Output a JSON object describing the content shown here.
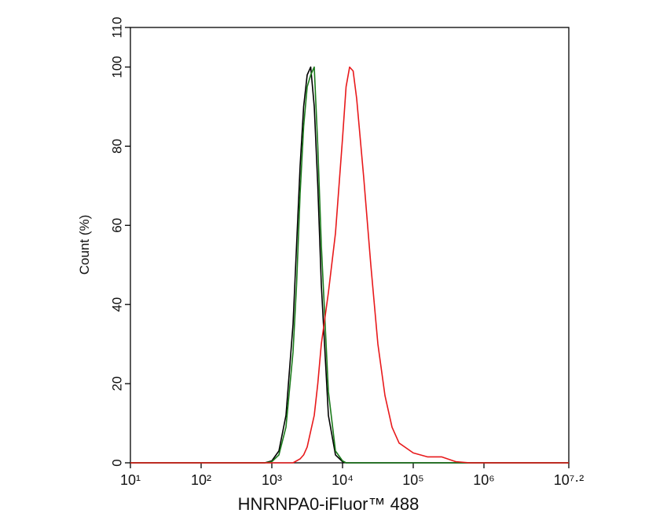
{
  "chart_data": {
    "type": "line",
    "x_label": "HNRNPA0-iFluor™ 488",
    "y_label": "Count  (%)",
    "x": [
      10,
      794,
      1000,
      1259,
      1585,
      1995,
      2239,
      2512,
      2818,
      3162,
      3548,
      3981,
      4467,
      5012,
      6310,
      7943,
      10000,
      11220,
      12589,
      14125,
      15849,
      19953,
      25119,
      31623,
      39811,
      50119,
      63096,
      100000,
      158489,
      251189,
      398107,
      630957,
      15848932
    ],
    "series": [
      {
        "color": "#000000",
        "values": [
          0,
          0,
          0.5,
          3,
          12,
          35,
          55,
          75,
          90,
          98,
          100,
          90,
          70,
          45,
          12,
          2,
          0.3,
          0,
          0,
          0,
          0,
          0,
          0,
          0,
          0,
          0,
          0,
          0,
          0,
          0,
          0,
          0,
          0
        ]
      },
      {
        "color": "#1a7a1a",
        "values": [
          0,
          0,
          0.3,
          2,
          9,
          28,
          45,
          68,
          85,
          95,
          98,
          100,
          80,
          55,
          18,
          3,
          0.5,
          0,
          0,
          0,
          0,
          0,
          0,
          0,
          0,
          0,
          0,
          0,
          0,
          0,
          0,
          0,
          0
        ]
      },
      {
        "color": "#e8191b",
        "values": [
          0,
          0,
          0,
          0,
          0,
          0,
          0.5,
          1,
          2,
          4,
          8,
          12,
          20,
          30,
          43,
          58,
          82,
          95,
          100,
          99,
          92,
          72,
          50,
          30,
          17,
          9,
          5,
          2.5,
          1.5,
          1.5,
          0.3,
          0,
          0
        ]
      }
    ],
    "xscale": "log",
    "xlim": [
      10,
      15848932
    ],
    "xticks": [
      {
        "value": 10,
        "label": "10¹"
      },
      {
        "value": 100,
        "label": "10²"
      },
      {
        "value": 1000,
        "label": "10³"
      },
      {
        "value": 10000,
        "label": "10⁴"
      },
      {
        "value": 100000,
        "label": "10⁵"
      },
      {
        "value": 1000000,
        "label": "10⁶"
      },
      {
        "value": 15848932,
        "label": "10⁷·²"
      }
    ],
    "ylim": [
      0,
      110
    ],
    "yticks": [
      0,
      20,
      40,
      60,
      80,
      100,
      110
    ]
  }
}
